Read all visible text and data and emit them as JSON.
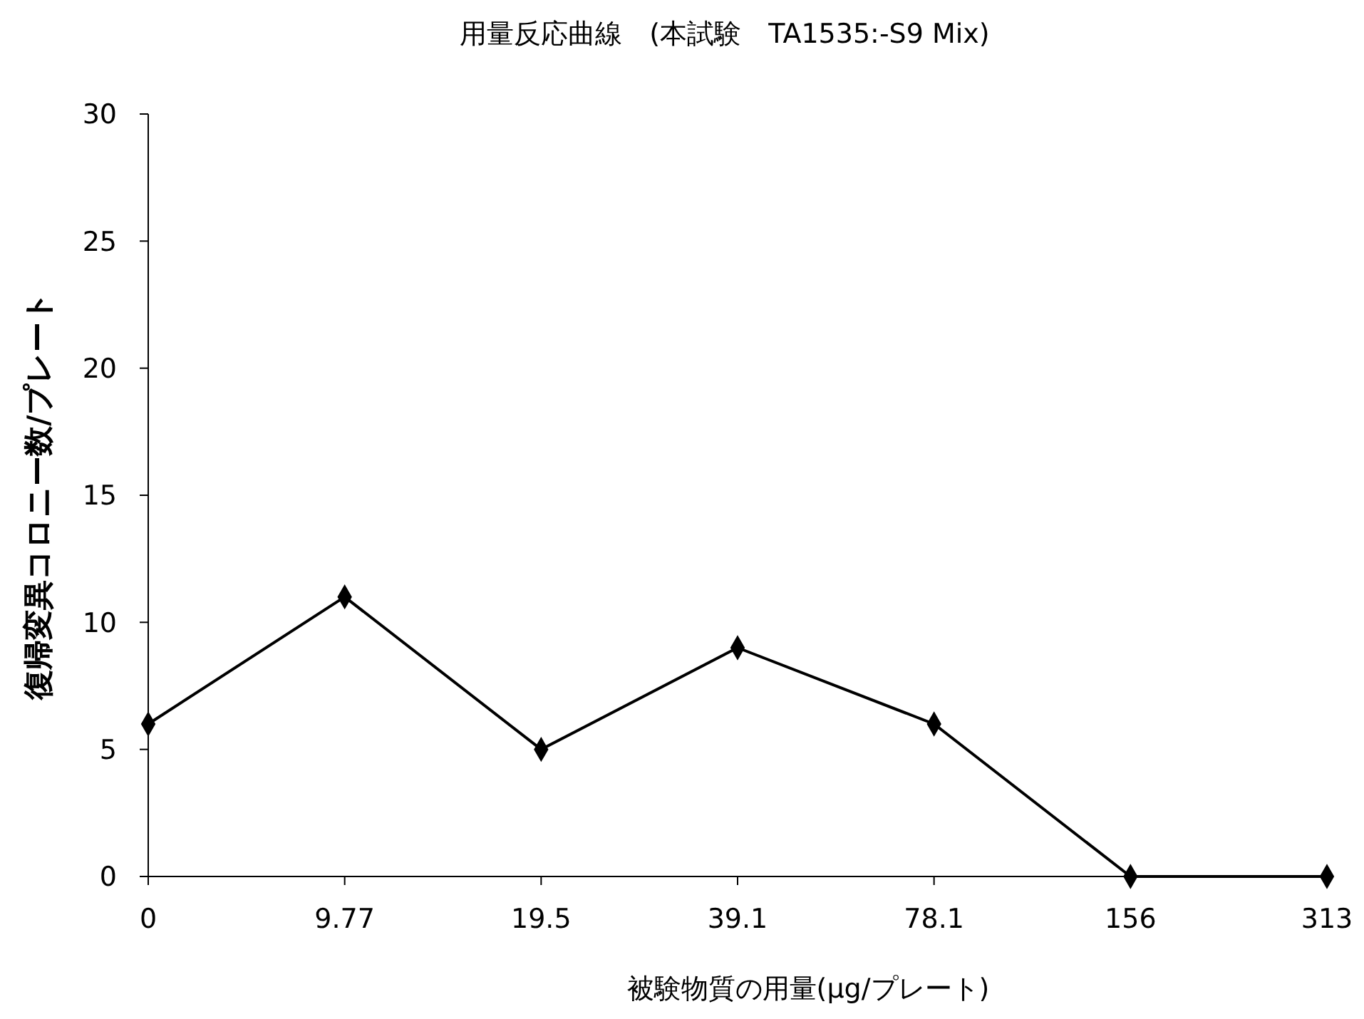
{
  "chart_data": {
    "type": "line",
    "title": "用量反応曲線　(本試験　TA1535:-S9 Mix)",
    "xlabel": "被験物質の用量(μg/プレート)",
    "ylabel": "復帰変異コロニー数/プレート",
    "categories": [
      "0",
      "9.77",
      "19.5",
      "39.1",
      "78.1",
      "156",
      "313"
    ],
    "series": [
      {
        "color": "#000000",
        "values": [
          6,
          11,
          5,
          9,
          6,
          0,
          0
        ]
      }
    ],
    "ylim": [
      0,
      30
    ],
    "yticks": [
      0,
      5,
      10,
      15,
      20,
      25,
      30
    ],
    "grid": false,
    "marker": "diamond",
    "line_style": "solid"
  }
}
